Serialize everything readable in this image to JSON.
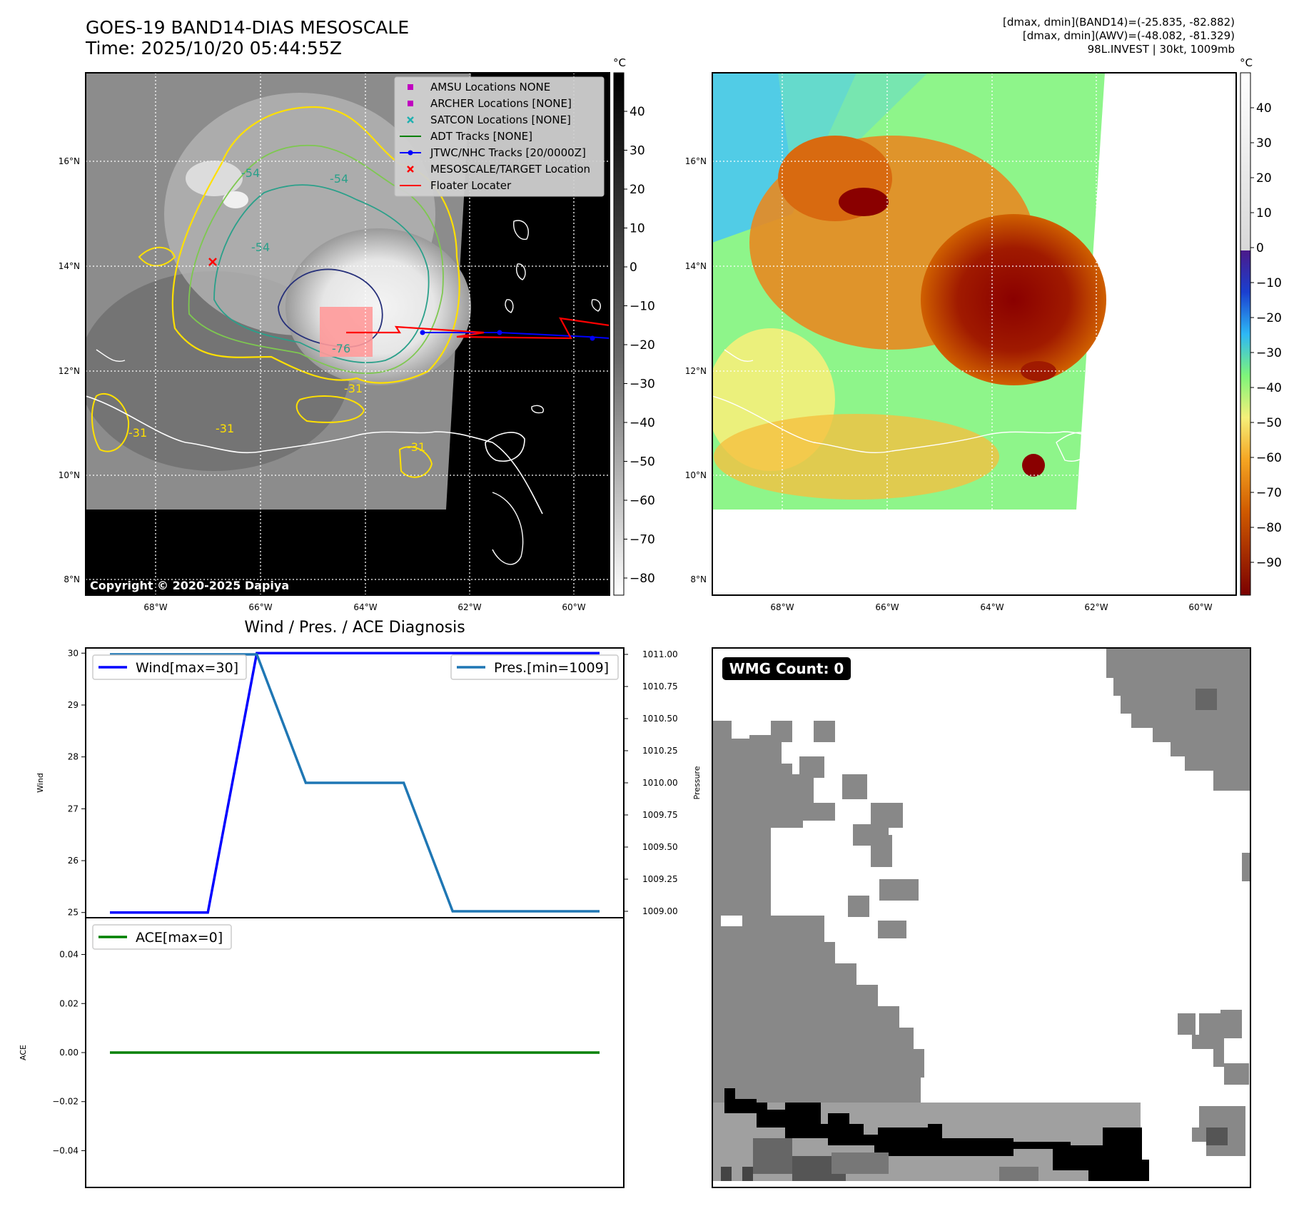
{
  "header": {
    "title_line1": "GOES-19 BAND14-DIAS MESOSCALE",
    "title_line2": "Time: 2025/10/20 05:44:55Z",
    "info_line1": "[dmax, dmin](BAND14)=(-25.835, -82.882)",
    "info_line2": "[dmax, dmin](AWV)=(-48.082, -81.329)",
    "info_line3": "98L.INVEST | 30kt, 1009mb"
  },
  "map": {
    "lat_labels": [
      "16°N",
      "14°N",
      "12°N",
      "10°N",
      "8°N"
    ],
    "lon_labels": [
      "68°W",
      "66°W",
      "64°W",
      "62°W",
      "60°W"
    ],
    "copyright": "Copyright © 2020-2025 Dapiya",
    "contour_labels": [
      "-54",
      "-54",
      "-54",
      "-76",
      "-31",
      "-31",
      "-31",
      "-31"
    ],
    "legend": [
      {
        "label": "AMSU Locations NONE",
        "marker": "square",
        "color": "#c000c0"
      },
      {
        "label": "ARCHER Locations [NONE]",
        "marker": "square",
        "color": "#c000c0"
      },
      {
        "label": "SATCON Locations [NONE]",
        "marker": "x",
        "color": "#20b0b0"
      },
      {
        "label": "ADT Tracks [NONE]",
        "marker": "line",
        "color": "#008000"
      },
      {
        "label": "JTWC/NHC Tracks [20/0000Z]",
        "marker": "line-dot",
        "color": "#0000ff"
      },
      {
        "label": "MESOSCALE/TARGET Location",
        "marker": "x",
        "color": "#ff0000"
      },
      {
        "label": "Floater Locater",
        "marker": "line",
        "color": "#ff0000"
      }
    ]
  },
  "colorbars": {
    "unit": "°C",
    "gray_ticks": [
      "40",
      "30",
      "20",
      "10",
      "0",
      "−10",
      "−20",
      "−30",
      "−40",
      "−50",
      "−60",
      "−70",
      "−80"
    ],
    "awv_ticks": [
      "40",
      "30",
      "20",
      "10",
      "0",
      "−10",
      "−20",
      "−30",
      "−40",
      "−50",
      "−60",
      "−70",
      "−80",
      "−90"
    ]
  },
  "chart_data": [
    {
      "type": "line",
      "title": "Wind / Pres. / ACE Diagnosis",
      "ylabel": "Wind",
      "ylabel_right": "Pressure",
      "x": [
        0,
        1,
        2,
        3,
        4,
        5,
        6,
        7,
        8,
        9,
        10
      ],
      "ylim": [
        24.9,
        30.1
      ],
      "ylim_right": [
        1008.95,
        1011.05
      ],
      "yticks": [
        "25",
        "26",
        "27",
        "28",
        "29",
        "30"
      ],
      "yticks_right": [
        "1009.00",
        "1009.25",
        "1009.50",
        "1009.75",
        "1010.00",
        "1010.25",
        "1010.50",
        "1010.75",
        "1011.00"
      ],
      "series": [
        {
          "name": "Wind[max=30]",
          "axis": "left",
          "color": "#0000ff",
          "values": [
            25,
            25,
            25,
            30,
            30,
            30,
            30,
            30,
            30,
            30,
            30
          ]
        },
        {
          "name": "Pres.[min=1009]",
          "axis": "right",
          "color": "#1f77b4",
          "values": [
            1011,
            1011,
            1011,
            1011,
            1010,
            1010,
            1010,
            1009,
            1009,
            1009,
            1009
          ]
        }
      ],
      "legend": [
        "top-left",
        "top-right"
      ]
    },
    {
      "type": "line",
      "ylabel": "ACE",
      "x": [
        0,
        1,
        2,
        3,
        4,
        5,
        6,
        7,
        8,
        9,
        10
      ],
      "ylim": [
        -0.055,
        0.055
      ],
      "yticks": [
        "0.04",
        "0.02",
        "0.00",
        "−0.02",
        "−0.04"
      ],
      "series": [
        {
          "name": "ACE[max=0]",
          "color": "#008000",
          "values": [
            0,
            0,
            0,
            0,
            0,
            0,
            0,
            0,
            0,
            0,
            0
          ]
        }
      ],
      "legend": "top-left"
    }
  ],
  "wmg": {
    "label": "WMG Count: 0"
  }
}
